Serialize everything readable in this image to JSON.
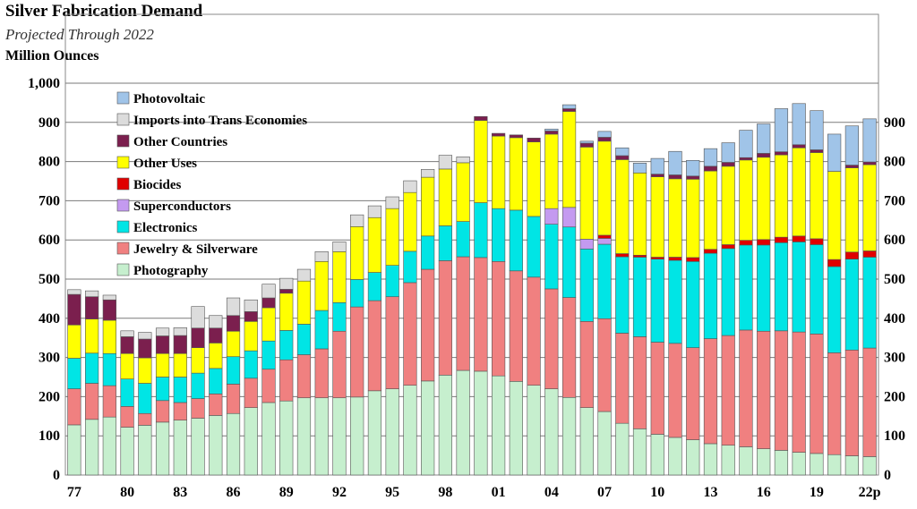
{
  "header": {
    "title": "Silver Fabrication Demand",
    "subtitle": "Projected Through 2022",
    "unit": "Million Ounces"
  },
  "chart_data": {
    "type": "bar",
    "stacked": true,
    "title": "Silver Fabrication Demand",
    "subtitle": "Projected Through 2022",
    "ylabel": "Million Ounces",
    "ylim": [
      0,
      1000
    ],
    "left_ticks": [
      "0",
      "100",
      "200",
      "300",
      "400",
      "500",
      "600",
      "700",
      "800",
      "900",
      "1,000"
    ],
    "right_ticks": [
      "0",
      "100",
      "200",
      "300",
      "400",
      "500",
      "600",
      "700",
      "800",
      "900"
    ],
    "x_tick_labels": [
      "77",
      "80",
      "83",
      "86",
      "89",
      "92",
      "95",
      "98",
      "01",
      "04",
      "07",
      "10",
      "13",
      "16",
      "19",
      "22p"
    ],
    "categories": [
      "1977",
      "1978",
      "1979",
      "1980",
      "1981",
      "1982",
      "1983",
      "1984",
      "1985",
      "1986",
      "1987",
      "1988",
      "1989",
      "1990",
      "1991",
      "1992",
      "1993",
      "1994",
      "1995",
      "1996",
      "1997",
      "1998",
      "1999",
      "2000",
      "2001",
      "2002",
      "2003",
      "2004",
      "2005",
      "2006",
      "2007",
      "2008",
      "2009",
      "2010",
      "2011",
      "2012",
      "2013",
      "2014",
      "2015",
      "2016",
      "2017",
      "2018",
      "2019",
      "2020",
      "2021",
      "2022p"
    ],
    "grid": true,
    "legend_position": "top-left",
    "series": [
      {
        "name": "Photography",
        "color": "#c6efce",
        "values": [
          128,
          142,
          148,
          122,
          127,
          135,
          140,
          145,
          152,
          157,
          172,
          185,
          189,
          197,
          197,
          197,
          199,
          215,
          220,
          229,
          240,
          255,
          267,
          265,
          253,
          239,
          229,
          220,
          198,
          172,
          162,
          132,
          118,
          104,
          96,
          90,
          80,
          76,
          72,
          67,
          63,
          58,
          55,
          52,
          49,
          47
        ]
      },
      {
        "name": "Jewelry & Silverware",
        "color": "#f08080",
        "values": [
          92,
          92,
          80,
          53,
          30,
          55,
          45,
          50,
          55,
          75,
          75,
          85,
          105,
          110,
          125,
          170,
          230,
          230,
          235,
          262,
          285,
          292,
          290,
          290,
          292,
          282,
          276,
          255,
          255,
          220,
          237,
          230,
          235,
          235,
          240,
          235,
          268,
          280,
          298,
          300,
          305,
          307,
          305,
          260,
          270,
          277
        ]
      },
      {
        "name": "Electronics",
        "color": "#00e5e5",
        "values": [
          78,
          77,
          82,
          70,
          77,
          60,
          65,
          65,
          65,
          70,
          70,
          72,
          75,
          78,
          98,
          73,
          70,
          72,
          80,
          80,
          85,
          89,
          90,
          140,
          135,
          155,
          155,
          165,
          180,
          185,
          190,
          195,
          203,
          212,
          212,
          220,
          218,
          222,
          217,
          220,
          225,
          230,
          228,
          220,
          232,
          232
        ]
      },
      {
        "name": "Superconductors",
        "color": "#c49af0",
        "values": [
          0,
          0,
          0,
          0,
          0,
          0,
          0,
          0,
          0,
          0,
          0,
          0,
          0,
          0,
          0,
          0,
          0,
          0,
          0,
          0,
          0,
          0,
          0,
          0,
          0,
          0,
          0,
          40,
          50,
          25,
          15,
          0,
          0,
          0,
          0,
          0,
          0,
          0,
          0,
          0,
          0,
          0,
          0,
          0,
          0,
          0
        ]
      },
      {
        "name": "Biocides",
        "color": "#e00000",
        "values": [
          0,
          0,
          0,
          0,
          0,
          0,
          0,
          0,
          0,
          0,
          0,
          0,
          0,
          0,
          0,
          0,
          0,
          0,
          0,
          0,
          0,
          0,
          0,
          0,
          0,
          0,
          0,
          0,
          0,
          0,
          8,
          8,
          5,
          5,
          8,
          10,
          10,
          10,
          12,
          14,
          14,
          15,
          15,
          18,
          18,
          16
        ]
      },
      {
        "name": "Other Uses",
        "color": "#ffff00",
        "values": [
          85,
          87,
          85,
          65,
          65,
          60,
          60,
          65,
          65,
          65,
          75,
          85,
          95,
          110,
          125,
          130,
          135,
          140,
          145,
          150,
          150,
          145,
          150,
          210,
          185,
          185,
          190,
          190,
          245,
          235,
          240,
          240,
          210,
          205,
          200,
          200,
          200,
          200,
          205,
          210,
          210,
          225,
          220,
          225,
          215,
          220
        ]
      },
      {
        "name": "Other Countries",
        "color": "#7b1f4e",
        "values": [
          78,
          57,
          52,
          43,
          48,
          45,
          46,
          50,
          38,
          40,
          25,
          25,
          10,
          0,
          0,
          0,
          0,
          0,
          0,
          0,
          0,
          0,
          0,
          10,
          7,
          7,
          10,
          8,
          7,
          10,
          10,
          10,
          0,
          7,
          10,
          8,
          12,
          10,
          6,
          10,
          8,
          8,
          7,
          0,
          7,
          7
        ]
      },
      {
        "name": "Imports into Trans Economies",
        "color": "#dcdcdc",
        "values": [
          12,
          15,
          12,
          15,
          17,
          20,
          20,
          55,
          32,
          45,
          30,
          35,
          28,
          30,
          25,
          25,
          30,
          30,
          30,
          30,
          20,
          35,
          15,
          0,
          0,
          0,
          0,
          0,
          0,
          0,
          0,
          0,
          0,
          0,
          0,
          0,
          0,
          0,
          0,
          0,
          0,
          0,
          0,
          0,
          0,
          0
        ]
      },
      {
        "name": "Photovoltaic",
        "color": "#a0c4e8",
        "values": [
          0,
          0,
          0,
          0,
          0,
          0,
          0,
          0,
          0,
          0,
          0,
          0,
          0,
          0,
          0,
          0,
          0,
          0,
          0,
          0,
          0,
          0,
          0,
          0,
          0,
          0,
          0,
          5,
          10,
          5,
          15,
          20,
          25,
          40,
          60,
          40,
          45,
          50,
          70,
          75,
          110,
          105,
          100,
          95,
          100,
          110
        ]
      }
    ]
  }
}
